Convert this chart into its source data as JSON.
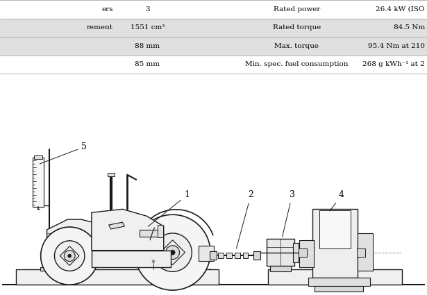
{
  "bg_color": "#ffffff",
  "lc": "#1a1a1a",
  "table_rows": [
    [
      "ers",
      "3",
      "Rated power",
      "26.4 kW (ISO"
    ],
    [
      "rement",
      "1551 cm³",
      "Rated torque",
      "84.5 Nm"
    ],
    [
      "",
      "88 mm",
      "Max. torque",
      "95.4 Nm at 210"
    ],
    [
      "",
      "85 mm",
      "Min. spec. fuel consumption",
      "268 g kWh⁻¹ at 2"
    ]
  ],
  "row_bg": [
    "#ffffff",
    "#e0e0e0",
    "#e0e0e0",
    "#ffffff"
  ],
  "sep_color": "#aaaaaa",
  "font_size": 7.5,
  "diagram_xlim": [
    0,
    615
  ],
  "diagram_ylim": [
    0,
    320
  ]
}
